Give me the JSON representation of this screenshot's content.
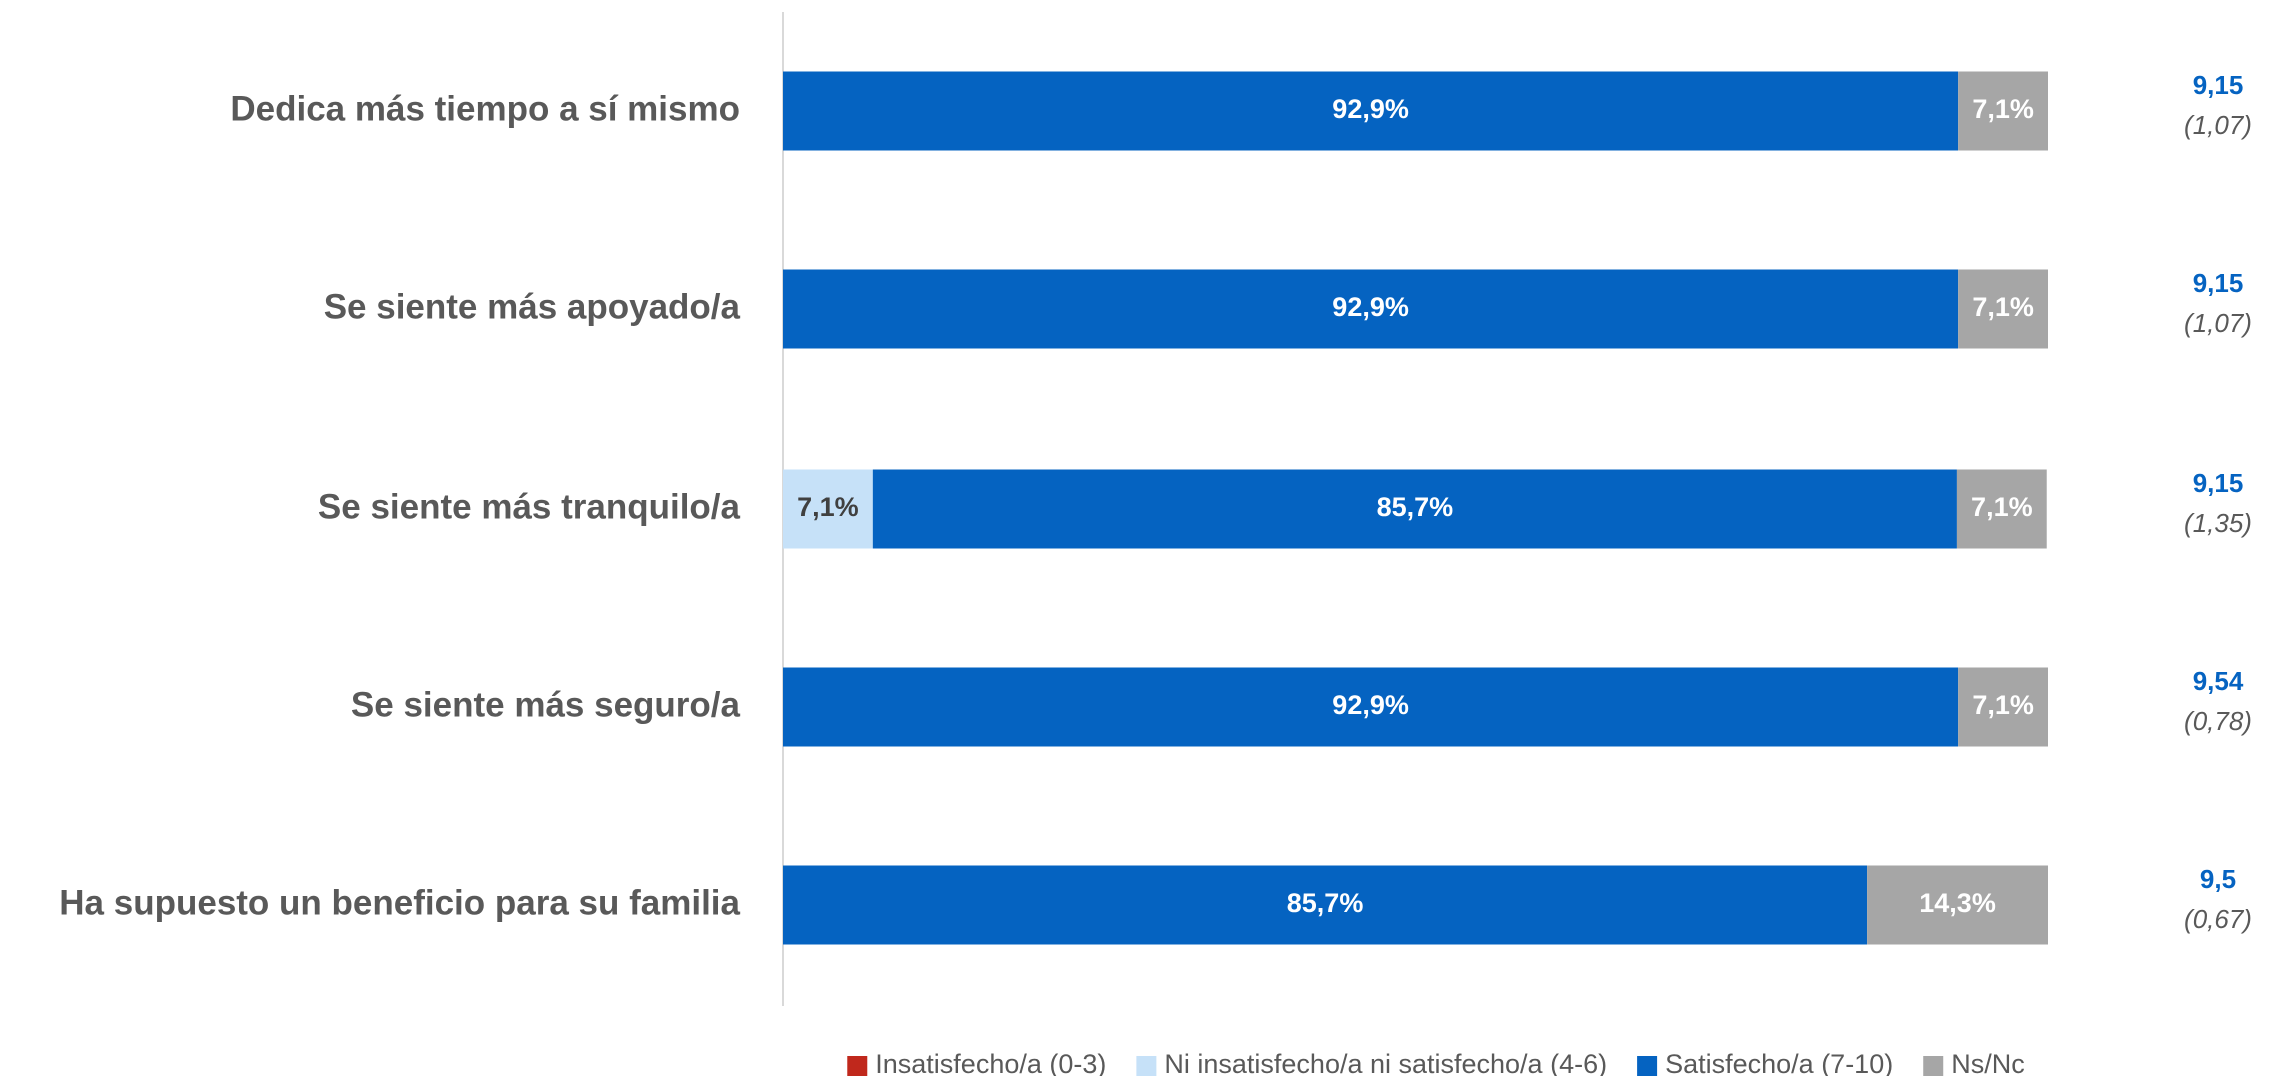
{
  "chart_data": {
    "type": "stacked-bar-horizontal",
    "categories": [
      "Dedica más tiempo a sí mismo",
      "Se siente más apoyado/a",
      "Se siente más tranquilo/a",
      "Se siente más seguro/a",
      "Ha supuesto un beneficio para su familia"
    ],
    "xlim": [
      0,
      100
    ],
    "series": [
      {
        "name": "Insatisfecho/a (0-3)",
        "color": "#c0281c",
        "text_color": "#ffffff",
        "values": [
          0,
          0,
          0,
          0,
          0
        ],
        "value_labels": [
          null,
          null,
          null,
          null,
          null
        ]
      },
      {
        "name": "Ni insatisfecho/a ni satisfecho/a (4-6)",
        "color": "#c6e1f8",
        "text_color": "#404040",
        "values": [
          0,
          0,
          7.1,
          0,
          0
        ],
        "value_labels": [
          null,
          null,
          "7,1%",
          null,
          null
        ]
      },
      {
        "name": "Satisfecho/a (7-10)",
        "color": "#0563c1",
        "text_color": "#ffffff",
        "values": [
          92.9,
          92.9,
          85.7,
          92.9,
          85.7
        ],
        "value_labels": [
          "92,9%",
          "92,9%",
          "85,7%",
          "92,9%",
          "85,7%"
        ]
      },
      {
        "name": "Ns/Nc",
        "color": "#a6a6a6",
        "text_color": "#ffffff",
        "values": [
          7.1,
          7.1,
          7.1,
          7.1,
          14.3
        ],
        "value_labels": [
          "7,1%",
          "7,1%",
          "7,1%",
          "7,1%",
          "14,3%"
        ]
      }
    ],
    "annotations": [
      {
        "mean": "9,15",
        "sd": "(1,07)"
      },
      {
        "mean": "9,15",
        "sd": "(1,07)"
      },
      {
        "mean": "9,15",
        "sd": "(1,35)"
      },
      {
        "mean": "9,54",
        "sd": "(0,78)"
      },
      {
        "mean": "9,5",
        "sd": "(0,67)"
      }
    ]
  }
}
